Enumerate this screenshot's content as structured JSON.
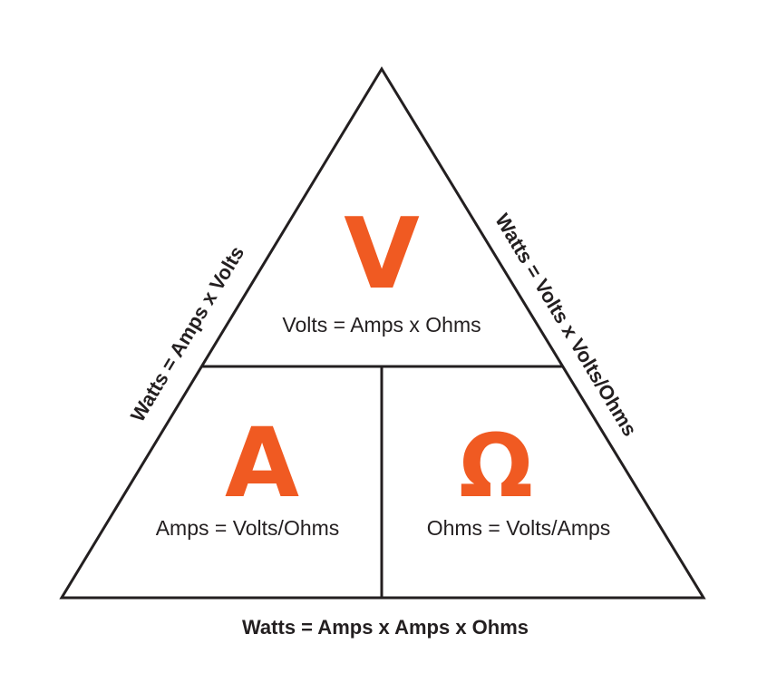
{
  "colors": {
    "accent": "#f05a22",
    "ink": "#231f20",
    "background": "#ffffff"
  },
  "triangle": {
    "top": {
      "symbol": "V",
      "formula": "Volts = Amps x Ohms"
    },
    "bottom_left": {
      "symbol": "A",
      "formula": "Amps = Volts/Ohms"
    },
    "bottom_right": {
      "symbol": "Ω",
      "formula": "Ohms = Volts/Amps"
    }
  },
  "sides": {
    "left": "Watts = Amps x Volts",
    "right": "Watts = Volts x Volts/Ohms",
    "bottom": "Watts = Amps x Amps x Ohms"
  }
}
